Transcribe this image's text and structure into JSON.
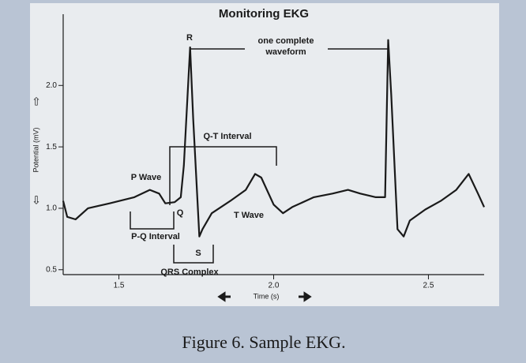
{
  "chart_data": {
    "type": "line",
    "title": "Monitoring EKG",
    "x_label": "Time (s)",
    "y_label": "Potential (mV)",
    "caption": "Figure 6. Sample EKG.",
    "x": [
      1.32,
      1.333,
      1.36,
      1.4,
      1.47,
      1.55,
      1.6,
      1.63,
      1.65,
      1.68,
      1.7,
      1.71,
      1.73,
      1.74,
      1.76,
      1.77,
      1.8,
      1.86,
      1.91,
      1.94,
      1.96,
      2.0,
      2.03,
      2.06,
      2.13,
      2.19,
      2.24,
      2.28,
      2.33,
      2.36,
      2.37,
      2.38,
      2.4,
      2.42,
      2.44,
      2.49,
      2.54,
      2.59,
      2.63,
      2.66,
      2.68
    ],
    "series": [
      {
        "name": "EKG",
        "color": "#1a1a1a",
        "values": [
          1.06,
          0.93,
          0.91,
          1.0,
          1.04,
          1.09,
          1.15,
          1.12,
          1.04,
          1.05,
          1.09,
          1.35,
          2.31,
          1.73,
          0.77,
          0.83,
          0.96,
          1.06,
          1.15,
          1.28,
          1.25,
          1.03,
          0.96,
          1.01,
          1.09,
          1.12,
          1.15,
          1.12,
          1.09,
          1.09,
          2.37,
          1.92,
          0.83,
          0.77,
          0.9,
          0.99,
          1.06,
          1.15,
          1.28,
          1.12,
          1.01
        ]
      }
    ],
    "xlim": [
      1.32,
      2.68
    ],
    "ylim": [
      0.46,
      2.58
    ],
    "xticks": [
      1.5,
      {
        "value": 2,
        "label": "2.0"
      },
      2.5
    ],
    "yticks": [
      0.5,
      {
        "value": 1,
        "label": "1.0"
      },
      1.5,
      {
        "value": 2,
        "label": "2.0"
      }
    ],
    "grid": false,
    "annotations": [
      "R",
      "one complete",
      "waveform",
      "Q-T Interval",
      "P Wave",
      "Q",
      "T Wave",
      "P-Q Interval",
      "S",
      "QRS Complex"
    ]
  }
}
